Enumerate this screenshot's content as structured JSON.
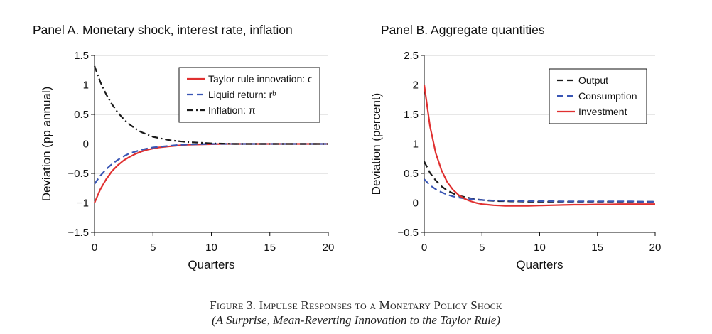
{
  "caption": {
    "figure_title": "Figure 3. Impulse Responses to a Monetary Policy Shock",
    "subtitle": "(A Surprise, Mean-Reverting Innovation to the Taylor Rule)"
  },
  "chart_data": [
    {
      "type": "line",
      "title": "Panel A. Monetary shock, interest rate, inflation",
      "xlabel": "Quarters",
      "ylabel": "Deviation (pp annual)",
      "xlim": [
        0,
        20
      ],
      "ylim": [
        -1.5,
        1.5
      ],
      "xticks": [
        "0",
        "5",
        "10",
        "15",
        "20"
      ],
      "yticks": [
        "1.5",
        "1",
        "0.5",
        "0",
        "−0.5",
        "−1",
        "−1.5"
      ],
      "grid": "horizontal",
      "legend": "top-right",
      "x": [
        0,
        0.5,
        1,
        1.5,
        2,
        2.5,
        3,
        3.5,
        4,
        4.5,
        5,
        5.5,
        6,
        6.5,
        7,
        7.5,
        8,
        9,
        10,
        11,
        12,
        13,
        14,
        15,
        16,
        17,
        18,
        19,
        20
      ],
      "series": [
        {
          "name": "Taylor rule innovation: ϵ",
          "color": "#e03030",
          "dash": "solid",
          "values": [
            -1.0,
            -0.77,
            -0.6,
            -0.46,
            -0.36,
            -0.28,
            -0.22,
            -0.17,
            -0.13,
            -0.1,
            -0.08,
            -0.06,
            -0.05,
            -0.04,
            -0.03,
            -0.02,
            -0.015,
            -0.01,
            -0.005,
            0,
            0,
            0,
            0,
            0,
            0,
            0,
            0,
            0,
            0
          ]
        },
        {
          "name": "Liquid return: rᵇ",
          "color": "#3a56b5",
          "dash": "dashed",
          "values": [
            -0.68,
            -0.54,
            -0.43,
            -0.34,
            -0.27,
            -0.21,
            -0.16,
            -0.13,
            -0.1,
            -0.08,
            -0.06,
            -0.05,
            -0.04,
            -0.03,
            -0.02,
            -0.015,
            -0.01,
            -0.005,
            0,
            0,
            0,
            0,
            0,
            0,
            0,
            0,
            0,
            0,
            0
          ]
        },
        {
          "name": "Inflation: π",
          "color": "#1a1a1a",
          "dash": "dashdot",
          "values": [
            1.32,
            1.05,
            0.84,
            0.67,
            0.53,
            0.42,
            0.33,
            0.26,
            0.2,
            0.16,
            0.12,
            0.1,
            0.08,
            0.06,
            0.05,
            0.04,
            0.03,
            0.02,
            0.01,
            0.005,
            0,
            0,
            0,
            0,
            0,
            0,
            0,
            0,
            0
          ]
        }
      ]
    },
    {
      "type": "line",
      "title": "Panel B. Aggregate quantities",
      "xlabel": "Quarters",
      "ylabel": "Deviation (percent)",
      "xlim": [
        0,
        20
      ],
      "ylim": [
        -0.5,
        2.5
      ],
      "xticks": [
        "0",
        "5",
        "10",
        "15",
        "20"
      ],
      "yticks": [
        "2.5",
        "2",
        "1.5",
        "1",
        "0.5",
        "0",
        "−0.5"
      ],
      "grid": "horizontal",
      "legend": "top-right",
      "x": [
        0,
        0.5,
        1,
        1.5,
        2,
        2.5,
        3,
        3.5,
        4,
        4.5,
        5,
        5.5,
        6,
        6.5,
        7,
        7.5,
        8,
        9,
        10,
        11,
        12,
        13,
        14,
        15,
        16,
        17,
        18,
        19,
        20
      ],
      "series": [
        {
          "name": "Output",
          "color": "#1a1a1a",
          "dash": "dashed",
          "values": [
            0.7,
            0.51,
            0.38,
            0.28,
            0.21,
            0.16,
            0.12,
            0.1,
            0.08,
            0.06,
            0.05,
            0.04,
            0.035,
            0.03,
            0.03,
            0.025,
            0.025,
            0.02,
            0.02,
            0.02,
            0.02,
            0.02,
            0.02,
            0.02,
            0.02,
            0.02,
            0.02,
            0.02,
            0.02
          ]
        },
        {
          "name": "Consumption",
          "color": "#3a56b5",
          "dash": "dashed",
          "values": [
            0.4,
            0.3,
            0.23,
            0.18,
            0.14,
            0.11,
            0.09,
            0.075,
            0.065,
            0.055,
            0.05,
            0.045,
            0.04,
            0.04,
            0.035,
            0.035,
            0.03,
            0.03,
            0.03,
            0.03,
            0.025,
            0.025,
            0.025,
            0.025,
            0.025,
            0.025,
            0.025,
            0.02,
            0.02
          ]
        },
        {
          "name": "Investment",
          "color": "#e03030",
          "dash": "solid",
          "values": [
            2.0,
            1.3,
            0.84,
            0.55,
            0.35,
            0.22,
            0.13,
            0.07,
            0.03,
            0.0,
            -0.02,
            -0.03,
            -0.04,
            -0.045,
            -0.05,
            -0.05,
            -0.05,
            -0.05,
            -0.045,
            -0.04,
            -0.035,
            -0.03,
            -0.03,
            -0.025,
            -0.025,
            -0.02,
            -0.02,
            -0.02,
            -0.02
          ]
        }
      ]
    }
  ]
}
